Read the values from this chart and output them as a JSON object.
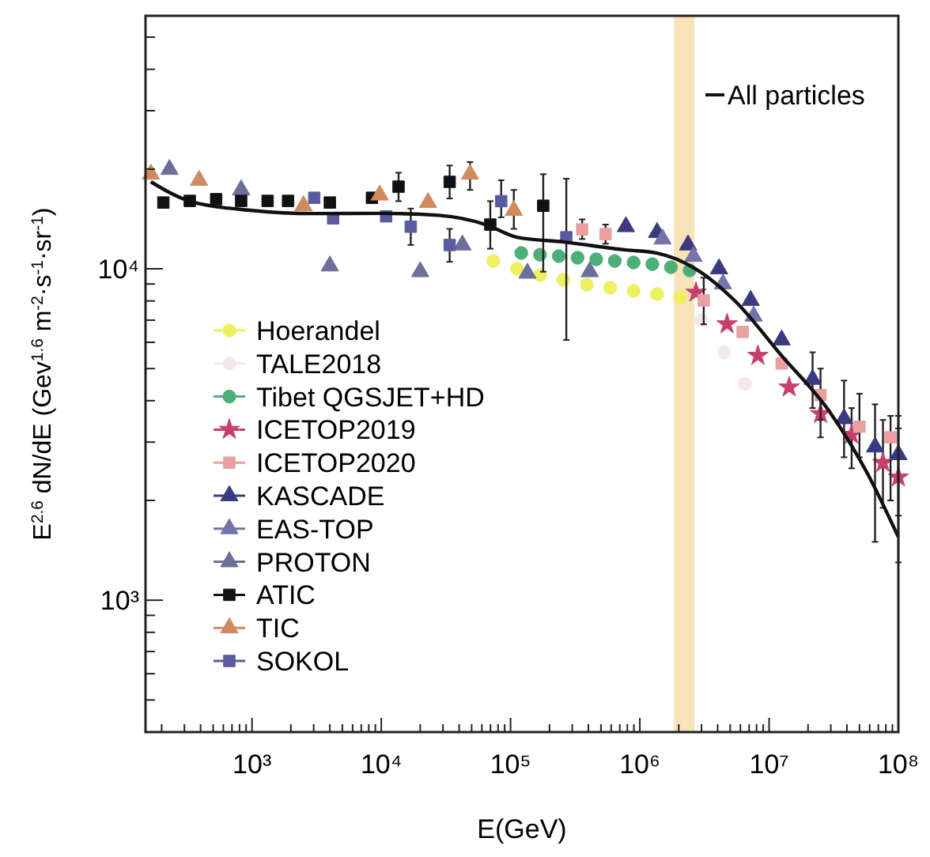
{
  "chart_data": {
    "type": "scatter",
    "xlabel": "E(GeV)",
    "ylabel": "E$^{2.6}$ dN/dE (Gev$^{1.6}$ m$^{-2}$·s$^{-1}$·sr$^{-1}$)",
    "log": "xy",
    "grid": false,
    "legend": "left",
    "xlim": [
      150,
      100000000
    ],
    "ylim": [
      400,
      58000
    ],
    "xticks": [
      {
        "value": 200,
        "label": null
      },
      {
        "value": 300,
        "label": null
      },
      {
        "value": 400,
        "label": null
      },
      {
        "value": 500,
        "label": null
      },
      {
        "value": 600,
        "label": null
      },
      {
        "value": 700,
        "label": null
      },
      {
        "value": 800,
        "label": null
      },
      {
        "value": 900,
        "label": null
      },
      {
        "value": 1000,
        "label": "10³"
      },
      {
        "value": 2000,
        "label": null
      },
      {
        "value": 3000,
        "label": null
      },
      {
        "value": 4000,
        "label": null
      },
      {
        "value": 5000,
        "label": null
      },
      {
        "value": 6000,
        "label": null
      },
      {
        "value": 7000,
        "label": null
      },
      {
        "value": 8000,
        "label": null
      },
      {
        "value": 9000,
        "label": null
      },
      {
        "value": 10000,
        "label": "10⁴"
      },
      {
        "value": 20000,
        "label": null
      },
      {
        "value": 30000,
        "label": null
      },
      {
        "value": 40000,
        "label": null
      },
      {
        "value": 50000,
        "label": null
      },
      {
        "value": 60000,
        "label": null
      },
      {
        "value": 70000,
        "label": null
      },
      {
        "value": 80000,
        "label": null
      },
      {
        "value": 90000,
        "label": null
      },
      {
        "value": 100000,
        "label": "10⁵"
      },
      {
        "value": 200000,
        "label": null
      },
      {
        "value": 300000,
        "label": null
      },
      {
        "value": 400000,
        "label": null
      },
      {
        "value": 500000,
        "label": null
      },
      {
        "value": 600000,
        "label": null
      },
      {
        "value": 700000,
        "label": null
      },
      {
        "value": 800000,
        "label": null
      },
      {
        "value": 900000,
        "label": null
      },
      {
        "value": 1000000,
        "label": "10⁶"
      },
      {
        "value": 2000000,
        "label": null
      },
      {
        "value": 3000000,
        "label": null
      },
      {
        "value": 4000000,
        "label": null
      },
      {
        "value": 5000000,
        "label": null
      },
      {
        "value": 6000000,
        "label": null
      },
      {
        "value": 7000000,
        "label": null
      },
      {
        "value": 8000000,
        "label": null
      },
      {
        "value": 9000000,
        "label": null
      },
      {
        "value": 10000000,
        "label": "10⁷"
      },
      {
        "value": 20000000,
        "label": null
      },
      {
        "value": 30000000,
        "label": null
      },
      {
        "value": 40000000,
        "label": null
      },
      {
        "value": 50000000,
        "label": null
      },
      {
        "value": 60000000,
        "label": null
      },
      {
        "value": 70000000,
        "label": null
      },
      {
        "value": 80000000,
        "label": null
      },
      {
        "value": 90000000,
        "label": null
      },
      {
        "value": 100000000,
        "label": "10⁸"
      }
    ],
    "yticks": [
      {
        "value": 500,
        "label": null
      },
      {
        "value": 600,
        "label": null
      },
      {
        "value": 700,
        "label": null
      },
      {
        "value": 800,
        "label": null
      },
      {
        "value": 900,
        "label": null
      },
      {
        "value": 1000,
        "label": "10³"
      },
      {
        "value": 2000,
        "label": null
      },
      {
        "value": 3000,
        "label": null
      },
      {
        "value": 4000,
        "label": null
      },
      {
        "value": 5000,
        "label": null
      },
      {
        "value": 6000,
        "label": null
      },
      {
        "value": 7000,
        "label": null
      },
      {
        "value": 8000,
        "label": null
      },
      {
        "value": 9000,
        "label": null
      },
      {
        "value": 10000,
        "label": "10⁴"
      },
      {
        "value": 20000,
        "label": null
      },
      {
        "value": 30000,
        "label": null
      },
      {
        "value": 40000,
        "label": null
      },
      {
        "value": 50000,
        "label": null
      }
    ],
    "bands": [
      {
        "axis": "x",
        "from": 1840000,
        "to": 2640000,
        "color": "#f8e4b8"
      }
    ],
    "series": [
      {
        "name": "Hoerandel",
        "color": "#eef060",
        "marker": "circle",
        "x": [
          73600,
          112000,
          169000,
          257000,
          389000,
          590000,
          895000,
          1360000,
          2060000
        ],
        "values": [
          10560,
          10000,
          9570,
          9260,
          8960,
          8770,
          8580,
          8390,
          8210
        ]
      },
      {
        "name": "TALE2018",
        "color": "#f2e8ee",
        "marker": "circle",
        "x": [
          3000000,
          4500000,
          6500000
        ],
        "values": [
          7000,
          5600,
          4500
        ]
      },
      {
        "name": "Tibet QGSJET+HD",
        "color": "#4caf78",
        "marker": "circle",
        "x": [
          121000,
          169000,
          236000,
          330000,
          460000,
          640000,
          895000,
          1250000,
          1740000,
          2430000
        ],
        "values": [
          11160,
          11030,
          10920,
          10800,
          10680,
          10560,
          10450,
          10330,
          10110,
          9890
        ]
      },
      {
        "name": "ICETOP2019",
        "color": "#c8406a",
        "marker": "star",
        "x": [
          2720000,
          4730000,
          8200000,
          14300000,
          25000000,
          43500000,
          76000000,
          100000000
        ],
        "values": [
          8480,
          6810,
          5470,
          4390,
          3650,
          3160,
          2600,
          2350
        ],
        "errors": [
          null,
          null,
          null,
          null,
          [
            3100,
            4300
          ],
          [
            2500,
            3800
          ],
          [
            1900,
            3500
          ],
          [
            1800,
            3300
          ]
        ]
      },
      {
        "name": "ICETOP2020",
        "color": "#e8a0a0",
        "marker": "square",
        "x": [
          358000,
          543000,
          3120000,
          6240000,
          12500000,
          25000000,
          50000000,
          87000000
        ],
        "values": [
          13150,
          12730,
          8030,
          6450,
          5180,
          4160,
          3340,
          3100
        ],
        "errors": [
          [
            12300,
            14100
          ],
          [
            11900,
            13600
          ],
          [
            6800,
            9400
          ],
          null,
          null,
          [
            3500,
            5000
          ],
          [
            2700,
            4200
          ],
          [
            2000,
            3600
          ]
        ]
      },
      {
        "name": "KASCADE",
        "color": "#3a3a80",
        "marker": "triangle",
        "x": [
          780000,
          1360000,
          2360000,
          4100000,
          7200000,
          12500000,
          21700000,
          38000000,
          66000000,
          100000000
        ],
        "values": [
          13400,
          12870,
          11800,
          10000,
          8030,
          6100,
          4640,
          3530,
          2900,
          2750
        ],
        "errors": [
          null,
          null,
          null,
          null,
          null,
          null,
          [
            3800,
            5600
          ],
          [
            2700,
            4600
          ],
          [
            1500,
            3900
          ],
          [
            1300,
            3600
          ]
        ]
      },
      {
        "name": "EAS-TOP",
        "color": "#7474aa",
        "marker": "triangle",
        "x": [
          1500000,
          2600000,
          4400000,
          7600000
        ],
        "values": [
          12300,
          10900,
          9000,
          7200
        ]
      },
      {
        "name": "PROTON",
        "color": "#6b6f9a",
        "marker": "triangle",
        "x": [
          230,
          824,
          4000,
          20000,
          42400,
          135000,
          410000
        ],
        "values": [
          19950,
          17300,
          10200,
          9800,
          11800,
          9700,
          9800
        ]
      },
      {
        "name": "ATIC",
        "color": "#111111",
        "marker": "square",
        "x": [
          206,
          330,
          528,
          824,
          1320,
          1900,
          4000,
          8470,
          13600,
          33800,
          69700,
          179000
        ],
        "values": [
          15850,
          16030,
          16220,
          16030,
          16030,
          16030,
          15850,
          16380,
          17700,
          18300,
          13600,
          15500
        ],
        "errors": [
          null,
          null,
          null,
          null,
          null,
          null,
          null,
          null,
          [
            16000,
            19500
          ],
          [
            16300,
            20500
          ],
          [
            11500,
            16000
          ],
          [
            9800,
            19300
          ]
        ]
      },
      {
        "name": "TIC",
        "color": "#d08a60",
        "marker": "triangle",
        "x": [
          165,
          390,
          2500,
          9730,
          23000,
          48600,
          106000
        ],
        "values": [
          19300,
          18500,
          15500,
          16700,
          15850,
          19300,
          15000
        ],
        "errors": [
          null,
          null,
          null,
          null,
          null,
          [
            17300,
            21000
          ],
          [
            13200,
            17300
          ]
        ]
      },
      {
        "name": "SOKOL",
        "color": "#5a5aa0",
        "marker": "square",
        "x": [
          3030,
          4240,
          10900,
          16900,
          33800,
          84700,
          270000
        ],
        "values": [
          16380,
          14200,
          14400,
          13400,
          11800,
          16000,
          12450
        ],
        "errors": [
          null,
          null,
          null,
          [
            11800,
            15200
          ],
          [
            10500,
            13200
          ],
          [
            14300,
            18500
          ],
          [
            6100,
            18700
          ]
        ]
      },
      {
        "name": "All particles",
        "type": "line",
        "color": "#111111",
        "x": [
          165,
          330,
          1000,
          3030,
          10000,
          27900,
          64100,
          112000,
          257000,
          780000,
          1350000,
          2700000,
          5400000,
          12500000,
          29000000,
          58000000,
          100000000
        ],
        "values": [
          18300,
          16000,
          15000,
          14680,
          14700,
          14500,
          13600,
          12450,
          12050,
          11400,
          11160,
          10000,
          8030,
          5470,
          3730,
          2400,
          1550
        ]
      }
    ]
  }
}
